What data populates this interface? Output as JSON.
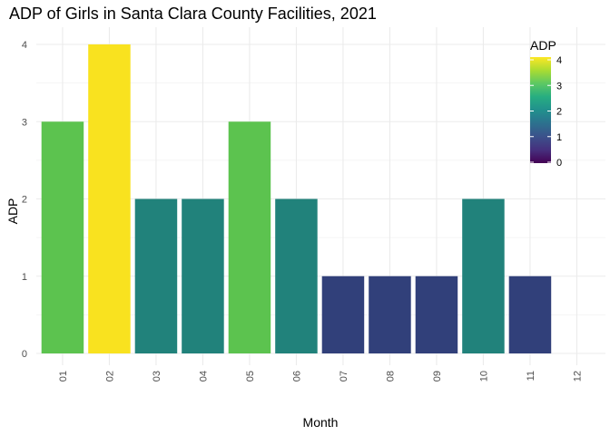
{
  "chart_data": {
    "type": "bar",
    "title": "ADP of Girls in Santa Clara County Facilities, 2021",
    "xlabel": "Month",
    "ylabel": "ADP",
    "categories": [
      "01",
      "02",
      "03",
      "04",
      "05",
      "06",
      "07",
      "08",
      "09",
      "10",
      "11",
      "12"
    ],
    "values": [
      3,
      4,
      2,
      2,
      3,
      2,
      1,
      1,
      1,
      2,
      1,
      0
    ],
    "ylim": [
      0,
      4
    ],
    "y_ticks": [
      "0",
      "1",
      "2",
      "3",
      "4"
    ],
    "grid": true,
    "legend": {
      "title": "ADP",
      "position": "top-right",
      "labels": [
        "4",
        "3",
        "2",
        "1",
        "0"
      ],
      "colorscale": "viridis"
    },
    "colors": {
      "1": "#31407a",
      "2": "#21827b",
      "3": "#5cc34f",
      "4": "#f9e21f"
    }
  }
}
